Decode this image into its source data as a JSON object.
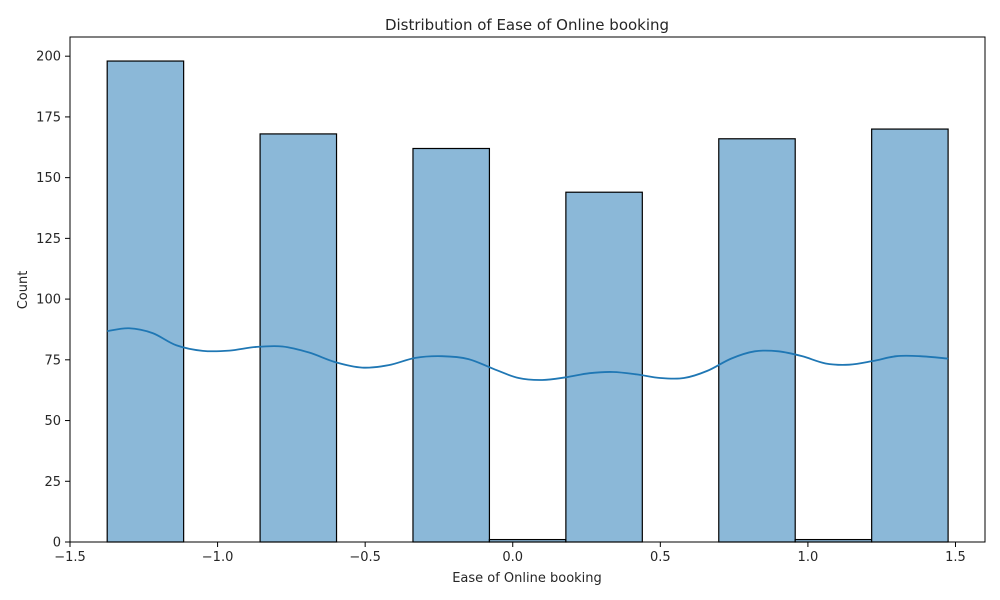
{
  "chart_data": {
    "type": "bar",
    "title": "Distribution of Ease of Online booking",
    "xlabel": "Ease of Online booking",
    "ylabel": "Count",
    "xlim": [
      -1.5,
      1.6
    ],
    "ylim": [
      0,
      207.9
    ],
    "x_ticks": [
      -1.5,
      -1.0,
      -0.5,
      0.0,
      0.5,
      1.0,
      1.5
    ],
    "x_tick_labels": [
      "−1.5",
      "−1.0",
      "−0.5",
      "0.0",
      "0.5",
      "1.0",
      "1.5"
    ],
    "y_ticks": [
      0,
      25,
      50,
      75,
      100,
      125,
      150,
      175,
      200
    ],
    "y_tick_labels": [
      "0",
      "25",
      "50",
      "75",
      "100",
      "125",
      "150",
      "175",
      "200"
    ],
    "bins": [
      {
        "x0": -1.374,
        "x1": -1.115,
        "count": 198
      },
      {
        "x0": -1.115,
        "x1": -0.856,
        "count": 0
      },
      {
        "x0": -0.856,
        "x1": -0.597,
        "count": 168
      },
      {
        "x0": -0.597,
        "x1": -0.338,
        "count": 0
      },
      {
        "x0": -0.338,
        "x1": -0.079,
        "count": 162
      },
      {
        "x0": -0.079,
        "x1": 0.18,
        "count": 1
      },
      {
        "x0": 0.18,
        "x1": 0.439,
        "count": 144
      },
      {
        "x0": 0.439,
        "x1": 0.698,
        "count": 0
      },
      {
        "x0": 0.698,
        "x1": 0.957,
        "count": 166
      },
      {
        "x0": 0.957,
        "x1": 1.216,
        "count": 1
      },
      {
        "x0": 1.216,
        "x1": 1.475,
        "count": 170
      }
    ],
    "kde": {
      "x": [
        -1.374,
        -1.3,
        -1.22,
        -1.14,
        -1.05,
        -0.96,
        -0.87,
        -0.78,
        -0.69,
        -0.6,
        -0.51,
        -0.42,
        -0.33,
        -0.24,
        -0.15,
        -0.06,
        0.02,
        0.1,
        0.18,
        0.26,
        0.34,
        0.42,
        0.5,
        0.58,
        0.66,
        0.74,
        0.82,
        0.9,
        0.98,
        1.06,
        1.14,
        1.22,
        1.3,
        1.38,
        1.475
      ],
      "y": [
        86.8,
        88.0,
        86.0,
        81.0,
        78.7,
        78.8,
        80.3,
        80.5,
        78.0,
        74.0,
        71.8,
        72.8,
        75.8,
        76.5,
        75.3,
        71.0,
        67.5,
        66.7,
        67.8,
        69.5,
        70.0,
        69.0,
        67.5,
        67.5,
        70.5,
        75.5,
        78.5,
        78.5,
        76.5,
        73.5,
        73.0,
        74.5,
        76.5,
        76.5,
        75.5
      ]
    },
    "bar_color": "#8bb8d8",
    "bar_edge_color": "#000000",
    "kde_color": "#1f77b4",
    "grid": false,
    "legend": "none"
  }
}
